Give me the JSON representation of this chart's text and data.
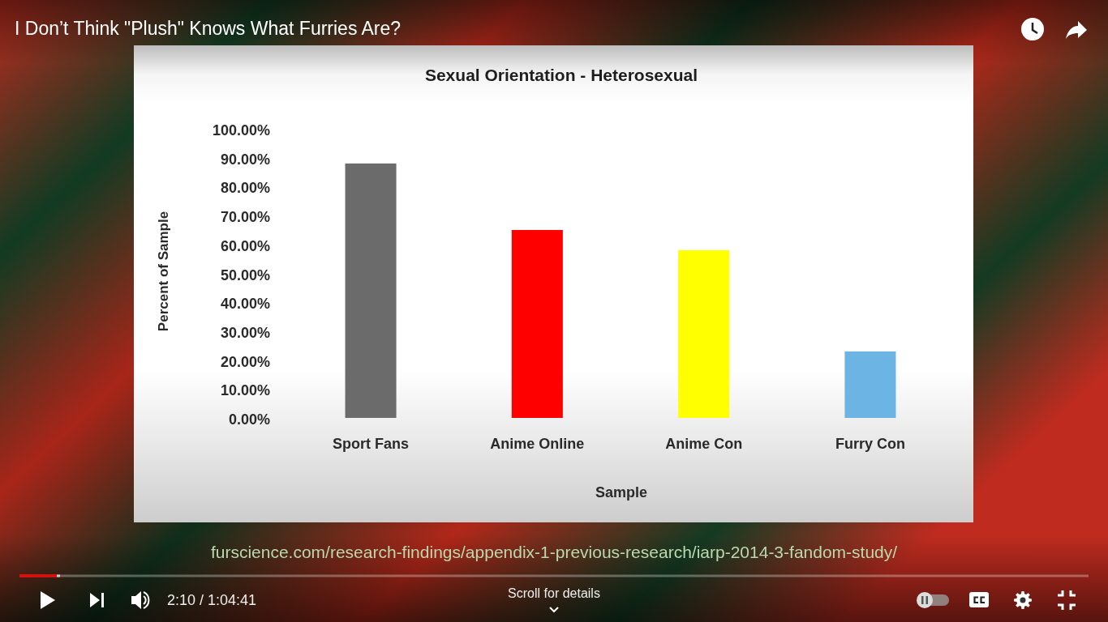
{
  "chart_data": {
    "type": "bar",
    "title": "Sexual Orientation - Heterosexual",
    "xlabel": "Sample",
    "ylabel": "Percent of Sample",
    "categories": [
      "Sport Fans",
      "Anime Online",
      "Anime Con",
      "Furry Con"
    ],
    "values": [
      88,
      65,
      58,
      23
    ],
    "colors": [
      "#6b6b6b",
      "#ff0000",
      "#ffff00",
      "#6cb4e4"
    ],
    "ylim": [
      0,
      100
    ],
    "yticks": [
      {
        "value": 0,
        "label": "0.00%"
      },
      {
        "value": 10,
        "label": "10.00%"
      },
      {
        "value": 20,
        "label": "20.00%"
      },
      {
        "value": 30,
        "label": "30.00%"
      },
      {
        "value": 40,
        "label": "40.00%"
      },
      {
        "value": 50,
        "label": "50.00%"
      },
      {
        "value": 60,
        "label": "60.00%"
      },
      {
        "value": 70,
        "label": "70.00%"
      },
      {
        "value": 80,
        "label": "80.00%"
      },
      {
        "value": 90,
        "label": "90.00%"
      },
      {
        "value": 100,
        "label": "100.00%"
      }
    ],
    "annotations": [
      "I Don’t Think \"Plush\" Knows What Furries Are?",
      "furscience.com/research-findings/appendix-1-previous-research/iarp-2014-3-fandom-study/",
      "2:10 / 1:04:41",
      "Scroll for details"
    ]
  }
}
